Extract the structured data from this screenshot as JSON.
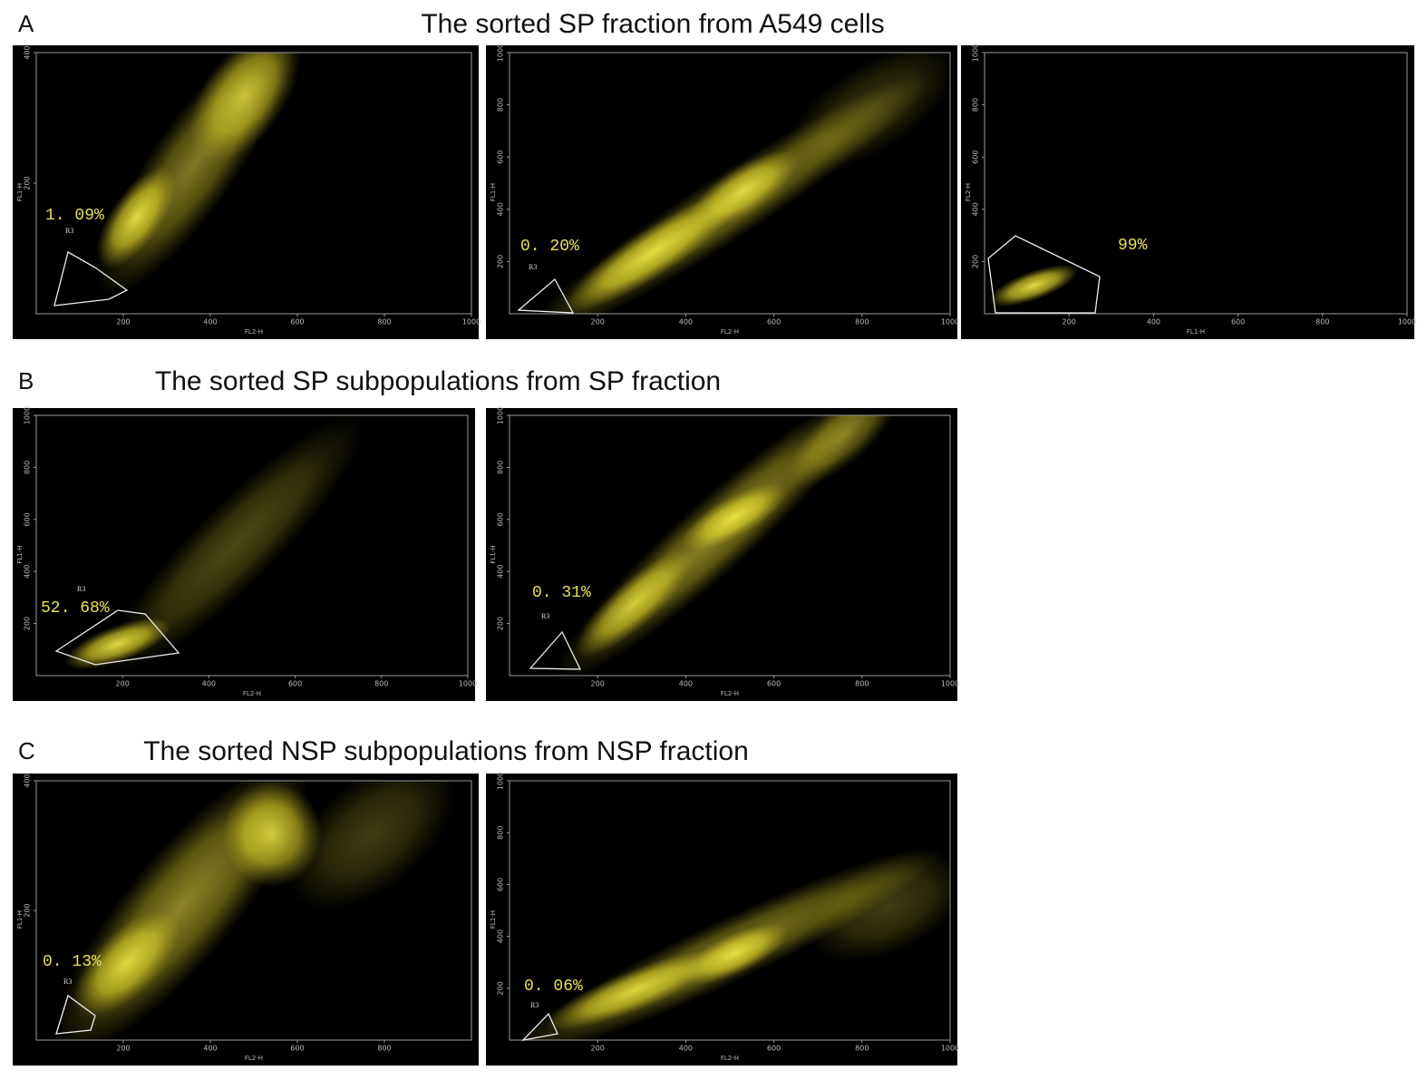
{
  "figure": {
    "panels": [
      {
        "label": "A",
        "title": "The sorted SP fraction from A549 cells",
        "plots": [
          {
            "x_axis": "FL2-H",
            "y_axis": "FL1-H",
            "xticks": [
              "200",
              "400",
              "600",
              "800",
              "1000"
            ],
            "yticks": [
              "200",
              "400"
            ],
            "percent": "1. 09%",
            "gate_label": "R3"
          },
          {
            "x_axis": "FL2-H",
            "y_axis": "FL1-H",
            "xticks": [
              "200",
              "400",
              "600",
              "800",
              "1000"
            ],
            "yticks": [
              "200",
              "400",
              "600",
              "800",
              "1000"
            ],
            "percent": "0. 20%",
            "gate_label": "R3"
          },
          {
            "x_axis": "FL1-H",
            "y_axis": "FL2-H",
            "xticks": [
              "200",
              "400",
              "600",
              "800",
              "1000"
            ],
            "yticks": [
              "200",
              "400",
              "600",
              "800",
              "1000"
            ],
            "percent": "99%"
          }
        ]
      },
      {
        "label": "B",
        "title": "The sorted SP subpopulations from SP fraction",
        "plots": [
          {
            "x_axis": "FL2-H",
            "y_axis": "FL1-H",
            "xticks": [
              "200",
              "400",
              "600",
              "800",
              "1000"
            ],
            "yticks": [
              "200",
              "400",
              "600",
              "800",
              "1000"
            ],
            "percent": "52. 68%",
            "gate_label": "R3"
          },
          {
            "x_axis": "FL2-H",
            "y_axis": "FL1-H",
            "xticks": [
              "200",
              "400",
              "600",
              "800",
              "1000"
            ],
            "yticks": [
              "200",
              "400",
              "600",
              "800",
              "1000"
            ],
            "percent": "0. 31%",
            "gate_label": "R3"
          }
        ]
      },
      {
        "label": "C",
        "title": "The sorted NSP subpopulations from NSP fraction",
        "plots": [
          {
            "x_axis": "FL2-H",
            "y_axis": "FL1-H",
            "xticks": [
              "200",
              "400",
              "600",
              "800"
            ],
            "yticks": [
              "200",
              "400"
            ],
            "percent": "0. 13%",
            "gate_label": "R3"
          },
          {
            "x_axis": "FL2-H",
            "y_axis": "FL1-H",
            "xticks": [
              "200",
              "400",
              "600",
              "800",
              "1000"
            ],
            "yticks": [
              "200",
              "400",
              "600",
              "800",
              "1000"
            ],
            "percent": "0. 06%",
            "gate_label": "R3"
          }
        ]
      }
    ]
  }
}
